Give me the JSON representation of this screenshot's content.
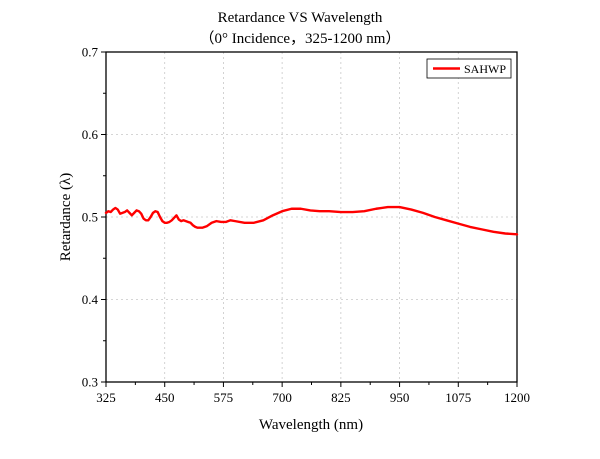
{
  "chart_data": {
    "type": "line",
    "title": "Retardance VS Wavelength",
    "subtitle": "（0° Incidence，325-1200 nm）",
    "xlabel": "Wavelength (nm)",
    "ylabel": "Retardance (λ)",
    "xlim": [
      325,
      1200
    ],
    "ylim": [
      0.3,
      0.7
    ],
    "xticks": [
      325,
      450,
      575,
      700,
      825,
      950,
      1075,
      1200
    ],
    "yticks": [
      0.3,
      0.4,
      0.5,
      0.6,
      0.7
    ],
    "xtick_labels": [
      "325",
      "450",
      "575",
      "700",
      "825",
      "950",
      "1075",
      "1200"
    ],
    "ytick_labels": [
      "0.3",
      "0.4",
      "0.5",
      "0.6",
      "0.7"
    ],
    "grid": true,
    "legend_position": "top-right",
    "series": [
      {
        "name": "SAHWP",
        "color": "#ff0000",
        "x": [
          325,
          330,
          335,
          340,
          345,
          350,
          355,
          360,
          365,
          370,
          375,
          380,
          385,
          390,
          395,
          400,
          405,
          410,
          415,
          420,
          425,
          430,
          435,
          440,
          445,
          450,
          455,
          460,
          465,
          470,
          475,
          480,
          485,
          490,
          495,
          500,
          505,
          510,
          515,
          520,
          530,
          540,
          550,
          560,
          570,
          580,
          590,
          600,
          620,
          640,
          660,
          680,
          700,
          720,
          740,
          760,
          780,
          800,
          825,
          850,
          875,
          900,
          925,
          950,
          975,
          1000,
          1025,
          1050,
          1075,
          1100,
          1125,
          1150,
          1175,
          1200
        ],
        "values": [
          0.505,
          0.507,
          0.506,
          0.509,
          0.511,
          0.509,
          0.504,
          0.505,
          0.506,
          0.508,
          0.505,
          0.502,
          0.505,
          0.508,
          0.507,
          0.504,
          0.498,
          0.496,
          0.496,
          0.5,
          0.505,
          0.507,
          0.506,
          0.5,
          0.495,
          0.493,
          0.493,
          0.494,
          0.496,
          0.499,
          0.502,
          0.497,
          0.495,
          0.496,
          0.495,
          0.494,
          0.493,
          0.49,
          0.488,
          0.487,
          0.487,
          0.489,
          0.493,
          0.495,
          0.494,
          0.494,
          0.496,
          0.495,
          0.493,
          0.493,
          0.496,
          0.502,
          0.507,
          0.51,
          0.51,
          0.508,
          0.507,
          0.507,
          0.506,
          0.506,
          0.507,
          0.51,
          0.512,
          0.512,
          0.509,
          0.505,
          0.5,
          0.496,
          0.492,
          0.488,
          0.485,
          0.482,
          0.48,
          0.479
        ]
      }
    ]
  }
}
